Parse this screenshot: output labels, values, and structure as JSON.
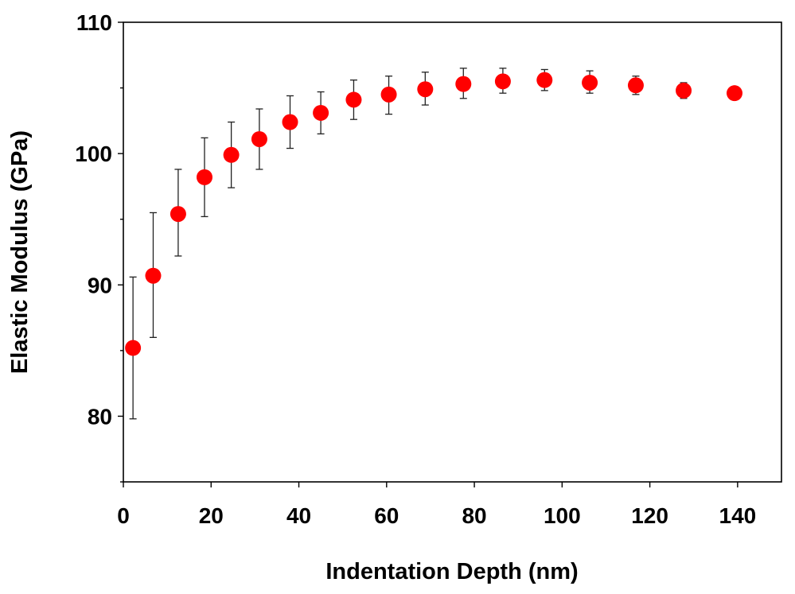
{
  "chart_data": {
    "type": "scatter",
    "title": "",
    "xlabel": "Indentation Depth (nm)",
    "ylabel": "Elastic Modulus (GPa)",
    "xlim": [
      0,
      150
    ],
    "ylim": [
      75,
      110
    ],
    "xticks": [
      0,
      20,
      40,
      60,
      80,
      100,
      120,
      140
    ],
    "yticks": [
      80,
      90,
      100,
      110
    ],
    "xtick_labels": [
      "0",
      "20",
      "40",
      "60",
      "80",
      "100",
      "120",
      "140"
    ],
    "ytick_labels": [
      "80",
      "90",
      "100",
      "110"
    ],
    "minor_yticks": [
      75,
      85,
      95,
      105
    ],
    "grid": false,
    "legend": "none",
    "marker_color": "#ff0000",
    "errorbar_color": "#222222",
    "series": [
      {
        "x": [
          2.2,
          6.8,
          12.5,
          18.5,
          24.6,
          31.0,
          38.0,
          45.0,
          52.5,
          60.5,
          68.8,
          77.5,
          86.5,
          96.0,
          106.3,
          116.8,
          127.7,
          139.3
        ],
        "y": [
          85.2,
          90.7,
          95.4,
          98.2,
          99.9,
          101.1,
          102.4,
          103.1,
          104.1,
          104.5,
          104.9,
          105.3,
          105.5,
          105.6,
          105.4,
          105.2,
          104.8,
          104.6
        ],
        "err_upper": [
          90.6,
          95.5,
          98.8,
          101.2,
          102.4,
          103.4,
          104.4,
          104.7,
          105.6,
          105.9,
          106.2,
          106.5,
          106.5,
          106.4,
          106.3,
          105.9,
          105.4,
          105.1
        ],
        "err_lower": [
          79.8,
          86.0,
          92.2,
          95.2,
          97.4,
          98.8,
          100.4,
          101.5,
          102.6,
          103.0,
          103.7,
          104.2,
          104.6,
          104.8,
          104.6,
          104.5,
          104.2,
          104.1
        ]
      }
    ]
  }
}
